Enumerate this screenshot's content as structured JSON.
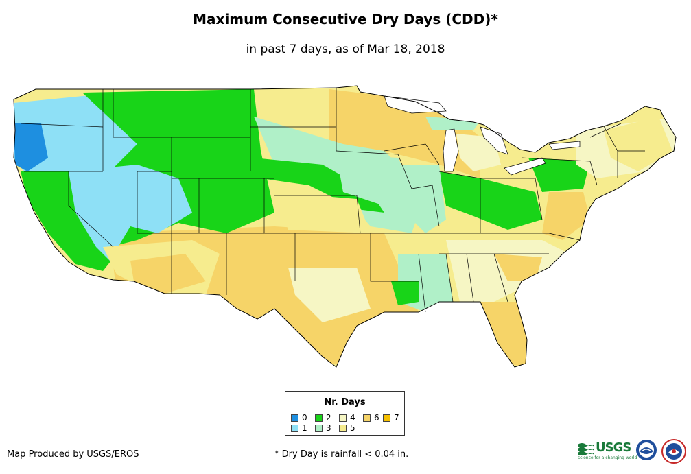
{
  "title": "Maximum Consecutive Dry Days (CDD)*",
  "subtitle": "in past 7 days, as of Mar 18, 2018",
  "legend": {
    "title": "Nr. Days",
    "items": [
      {
        "label": "0",
        "color": "#1e8fe0"
      },
      {
        "label": "1",
        "color": "#8ee0f6"
      },
      {
        "label": "2",
        "color": "#18d418"
      },
      {
        "label": "3",
        "color": "#b0f0c8"
      },
      {
        "label": "4",
        "color": "#f6f6c4"
      },
      {
        "label": "5",
        "color": "#f6ec8e"
      },
      {
        "label": "6",
        "color": "#f6d468"
      },
      {
        "label": "7",
        "color": "#f6c000"
      }
    ]
  },
  "credit": "Map Produced by USGS/EROS",
  "footnote": "* Dry Day is rainfall < 0.04 in.",
  "logos": {
    "usgs_word": "USGS",
    "usgs_tagline": "science for a changing world"
  }
}
